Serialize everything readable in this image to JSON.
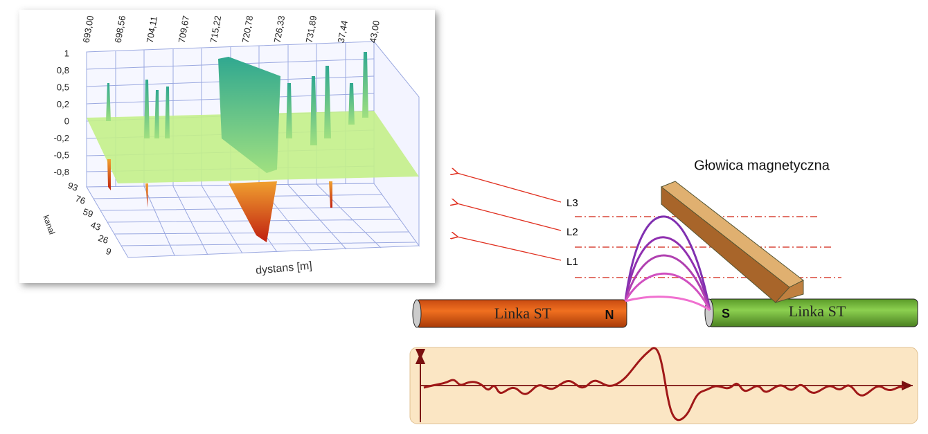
{
  "plot": {
    "top_ticks": [
      "693,00",
      "698,56",
      "704,11",
      "709,67",
      "715,22",
      "720,78",
      "726,33",
      "731,89",
      "37,44",
      "43,00"
    ],
    "z_ticks": [
      "1",
      "0,8",
      "0,5",
      "0,2",
      "0",
      "-0,2",
      "-0,5",
      "-0,8"
    ],
    "channel_ticks": [
      "93",
      "76",
      "59",
      "43",
      "26",
      "9"
    ],
    "x_label": "dystans [m]",
    "channel_label": "kanał"
  },
  "diagram": {
    "head_label": "Głowica magnetyczna",
    "levels": [
      "L3",
      "L2",
      "L1"
    ],
    "left_rod": "Linka ST",
    "left_pole": "N",
    "right_rod": "Linka ST",
    "right_pole": "S"
  }
}
